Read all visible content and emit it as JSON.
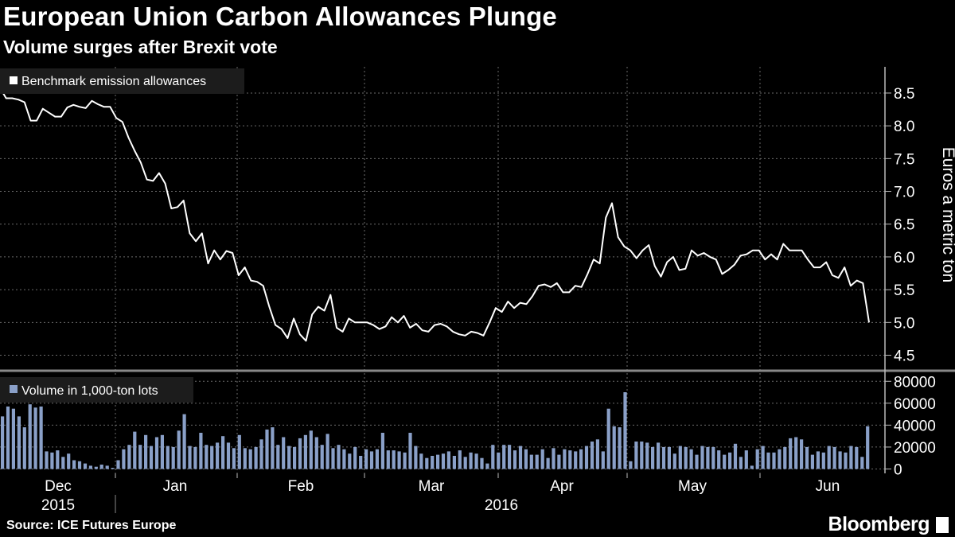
{
  "header": {
    "title": "European Union Carbon Allowances Plunge",
    "subtitle": "Volume surges after Brexit vote"
  },
  "footer": {
    "source": "Source: ICE Futures Europe",
    "brand": "Bloomberg"
  },
  "colors": {
    "background": "#000000",
    "price_line": "#ffffff",
    "volume_bars": "#8aa0c8",
    "grid": "#6b6b6b"
  },
  "chart_data": [
    {
      "type": "line",
      "legend": [
        "Benchmark emission allowances"
      ],
      "ylabel": "Euros a metric ton",
      "ylim": [
        4.3,
        8.9
      ],
      "yticks": [
        "8.5",
        "8.0",
        "7.5",
        "7.0",
        "6.5",
        "6.0",
        "5.5",
        "5.0",
        "4.5"
      ],
      "ytick_values": [
        8.5,
        8.0,
        7.5,
        7.0,
        6.5,
        6.0,
        5.5,
        5.0,
        4.5
      ],
      "grid": true,
      "series": [
        {
          "values": [
            8.58,
            8.42,
            8.42,
            8.4,
            8.36,
            8.08,
            8.08,
            8.26,
            8.2,
            8.14,
            8.14,
            8.28,
            8.32,
            8.29,
            8.27,
            8.38,
            8.33,
            8.29,
            8.29,
            8.12,
            8.06,
            7.82,
            7.62,
            7.44,
            7.18,
            7.16,
            7.28,
            7.12,
            6.74,
            6.76,
            6.86,
            6.36,
            6.24,
            6.36,
            5.9,
            6.1,
            5.96,
            6.09,
            6.06,
            5.72,
            5.84,
            5.64,
            5.62,
            5.56,
            5.24,
            4.96,
            4.9,
            4.76,
            5.06,
            4.82,
            4.72,
            5.12,
            5.24,
            5.18,
            5.42,
            4.92,
            4.86,
            5.06,
            5.0,
            5.0,
            5.0,
            4.96,
            4.9,
            4.94,
            5.08,
            5.0,
            5.1,
            4.92,
            4.98,
            4.88,
            4.86,
            4.96,
            4.98,
            4.94,
            4.86,
            4.82,
            4.8,
            4.86,
            4.84,
            4.8,
            5.0,
            5.22,
            5.16,
            5.32,
            5.22,
            5.3,
            5.28,
            5.4,
            5.56,
            5.58,
            5.54,
            5.6,
            5.46,
            5.46,
            5.56,
            5.54,
            5.74,
            5.96,
            5.9,
            6.6,
            6.82,
            6.3,
            6.16,
            6.1,
            5.98,
            6.1,
            6.18,
            5.86,
            5.7,
            5.92,
            6.0,
            5.8,
            5.82,
            6.1,
            6.02,
            6.06,
            6.0,
            5.96,
            5.74,
            5.8,
            5.88,
            6.02,
            6.04,
            6.1,
            6.1,
            5.96,
            6.04,
            5.96,
            6.2,
            6.1,
            6.1,
            6.1,
            5.96,
            5.84,
            5.84,
            5.92,
            5.72,
            5.68,
            5.84,
            5.56,
            5.64,
            5.6,
            5.0
          ]
        }
      ]
    },
    {
      "type": "bar",
      "legend": [
        "Volume in 1,000-ton lots"
      ],
      "ylim": [
        -4000,
        86000
      ],
      "yticks": [
        "80000",
        "60000",
        "40000",
        "20000",
        "0"
      ],
      "ytick_values": [
        80000,
        60000,
        40000,
        20000,
        0
      ],
      "xticks": [
        "Dec",
        "Jan",
        "Feb",
        "Mar",
        "Apr",
        "May",
        "Jun"
      ],
      "year_labels": [
        "2015",
        "2016"
      ],
      "grid": true,
      "series": [
        {
          "values": [
            48000,
            57000,
            55000,
            48000,
            38000,
            59000,
            56000,
            57000,
            16000,
            15000,
            17000,
            11000,
            14000,
            8000,
            7000,
            5000,
            3000,
            2000,
            4000,
            3000,
            1000,
            8000,
            18000,
            22000,
            34000,
            22000,
            31000,
            21000,
            29000,
            31000,
            21000,
            20000,
            35000,
            50000,
            21000,
            20000,
            33000,
            22000,
            21000,
            24000,
            30000,
            24000,
            19000,
            31000,
            19000,
            18000,
            20000,
            27000,
            36000,
            38000,
            22000,
            29000,
            21000,
            20000,
            28000,
            31000,
            35000,
            29000,
            22000,
            32000,
            19000,
            22000,
            18000,
            14000,
            20000,
            12000,
            18000,
            16000,
            18000,
            33000,
            17000,
            17000,
            16000,
            15000,
            33000,
            21000,
            14000,
            10000,
            12000,
            13000,
            14000,
            16000,
            12000,
            17000,
            11000,
            15000,
            14000,
            10000,
            5000,
            22000,
            15000,
            22000,
            22000,
            17000,
            21000,
            18000,
            13000,
            13000,
            18000,
            10000,
            19000,
            13000,
            18000,
            17000,
            16000,
            18000,
            21000,
            25000,
            27000,
            16000,
            55000,
            39000,
            38000,
            70000,
            7000,
            25000,
            25000,
            24000,
            20000,
            24000,
            20000,
            20000,
            14000,
            21000,
            20000,
            18000,
            13000,
            21000,
            20000,
            20000,
            17000,
            13000,
            15000,
            23000,
            11000,
            17000,
            3000,
            18000,
            21000,
            15000,
            15000,
            18000,
            20000,
            28000,
            29000,
            27000,
            20000,
            13000,
            16000,
            15000,
            21000,
            20000,
            16000,
            15000,
            21000,
            20000,
            11000,
            39000
          ]
        }
      ]
    }
  ]
}
